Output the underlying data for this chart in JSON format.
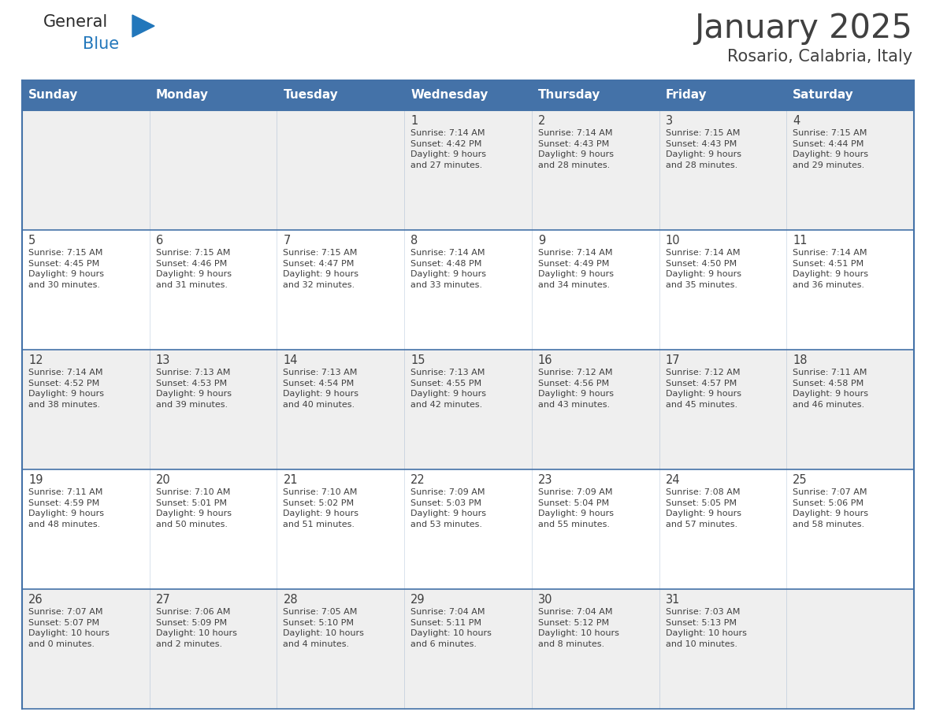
{
  "title": "January 2025",
  "subtitle": "Rosario, Calabria, Italy",
  "header_color": "#4472A8",
  "header_text_color": "#FFFFFF",
  "bg_color": "#FFFFFF",
  "row0_color": "#EFEFEF",
  "row1_color": "#FFFFFF",
  "border_color": "#4472A8",
  "text_color": "#404040",
  "days_of_week": [
    "Sunday",
    "Monday",
    "Tuesday",
    "Wednesday",
    "Thursday",
    "Friday",
    "Saturday"
  ],
  "logo_general_color": "#2B2B2B",
  "logo_blue_color": "#2277BB",
  "calendar_data": [
    [
      {
        "day": null,
        "info": null
      },
      {
        "day": null,
        "info": null
      },
      {
        "day": null,
        "info": null
      },
      {
        "day": 1,
        "info": "Sunrise: 7:14 AM\nSunset: 4:42 PM\nDaylight: 9 hours\nand 27 minutes."
      },
      {
        "day": 2,
        "info": "Sunrise: 7:14 AM\nSunset: 4:43 PM\nDaylight: 9 hours\nand 28 minutes."
      },
      {
        "day": 3,
        "info": "Sunrise: 7:15 AM\nSunset: 4:43 PM\nDaylight: 9 hours\nand 28 minutes."
      },
      {
        "day": 4,
        "info": "Sunrise: 7:15 AM\nSunset: 4:44 PM\nDaylight: 9 hours\nand 29 minutes."
      }
    ],
    [
      {
        "day": 5,
        "info": "Sunrise: 7:15 AM\nSunset: 4:45 PM\nDaylight: 9 hours\nand 30 minutes."
      },
      {
        "day": 6,
        "info": "Sunrise: 7:15 AM\nSunset: 4:46 PM\nDaylight: 9 hours\nand 31 minutes."
      },
      {
        "day": 7,
        "info": "Sunrise: 7:15 AM\nSunset: 4:47 PM\nDaylight: 9 hours\nand 32 minutes."
      },
      {
        "day": 8,
        "info": "Sunrise: 7:14 AM\nSunset: 4:48 PM\nDaylight: 9 hours\nand 33 minutes."
      },
      {
        "day": 9,
        "info": "Sunrise: 7:14 AM\nSunset: 4:49 PM\nDaylight: 9 hours\nand 34 minutes."
      },
      {
        "day": 10,
        "info": "Sunrise: 7:14 AM\nSunset: 4:50 PM\nDaylight: 9 hours\nand 35 minutes."
      },
      {
        "day": 11,
        "info": "Sunrise: 7:14 AM\nSunset: 4:51 PM\nDaylight: 9 hours\nand 36 minutes."
      }
    ],
    [
      {
        "day": 12,
        "info": "Sunrise: 7:14 AM\nSunset: 4:52 PM\nDaylight: 9 hours\nand 38 minutes."
      },
      {
        "day": 13,
        "info": "Sunrise: 7:13 AM\nSunset: 4:53 PM\nDaylight: 9 hours\nand 39 minutes."
      },
      {
        "day": 14,
        "info": "Sunrise: 7:13 AM\nSunset: 4:54 PM\nDaylight: 9 hours\nand 40 minutes."
      },
      {
        "day": 15,
        "info": "Sunrise: 7:13 AM\nSunset: 4:55 PM\nDaylight: 9 hours\nand 42 minutes."
      },
      {
        "day": 16,
        "info": "Sunrise: 7:12 AM\nSunset: 4:56 PM\nDaylight: 9 hours\nand 43 minutes."
      },
      {
        "day": 17,
        "info": "Sunrise: 7:12 AM\nSunset: 4:57 PM\nDaylight: 9 hours\nand 45 minutes."
      },
      {
        "day": 18,
        "info": "Sunrise: 7:11 AM\nSunset: 4:58 PM\nDaylight: 9 hours\nand 46 minutes."
      }
    ],
    [
      {
        "day": 19,
        "info": "Sunrise: 7:11 AM\nSunset: 4:59 PM\nDaylight: 9 hours\nand 48 minutes."
      },
      {
        "day": 20,
        "info": "Sunrise: 7:10 AM\nSunset: 5:01 PM\nDaylight: 9 hours\nand 50 minutes."
      },
      {
        "day": 21,
        "info": "Sunrise: 7:10 AM\nSunset: 5:02 PM\nDaylight: 9 hours\nand 51 minutes."
      },
      {
        "day": 22,
        "info": "Sunrise: 7:09 AM\nSunset: 5:03 PM\nDaylight: 9 hours\nand 53 minutes."
      },
      {
        "day": 23,
        "info": "Sunrise: 7:09 AM\nSunset: 5:04 PM\nDaylight: 9 hours\nand 55 minutes."
      },
      {
        "day": 24,
        "info": "Sunrise: 7:08 AM\nSunset: 5:05 PM\nDaylight: 9 hours\nand 57 minutes."
      },
      {
        "day": 25,
        "info": "Sunrise: 7:07 AM\nSunset: 5:06 PM\nDaylight: 9 hours\nand 58 minutes."
      }
    ],
    [
      {
        "day": 26,
        "info": "Sunrise: 7:07 AM\nSunset: 5:07 PM\nDaylight: 10 hours\nand 0 minutes."
      },
      {
        "day": 27,
        "info": "Sunrise: 7:06 AM\nSunset: 5:09 PM\nDaylight: 10 hours\nand 2 minutes."
      },
      {
        "day": 28,
        "info": "Sunrise: 7:05 AM\nSunset: 5:10 PM\nDaylight: 10 hours\nand 4 minutes."
      },
      {
        "day": 29,
        "info": "Sunrise: 7:04 AM\nSunset: 5:11 PM\nDaylight: 10 hours\nand 6 minutes."
      },
      {
        "day": 30,
        "info": "Sunrise: 7:04 AM\nSunset: 5:12 PM\nDaylight: 10 hours\nand 8 minutes."
      },
      {
        "day": 31,
        "info": "Sunrise: 7:03 AM\nSunset: 5:13 PM\nDaylight: 10 hours\nand 10 minutes."
      },
      {
        "day": null,
        "info": null
      }
    ]
  ],
  "fig_width": 11.88,
  "fig_height": 9.18,
  "dpi": 100
}
